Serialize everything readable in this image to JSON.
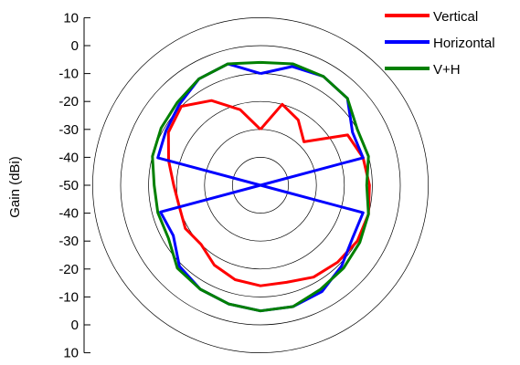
{
  "chart_data": {
    "type": "line",
    "subtype": "polar",
    "ylabel": "Gain (dBi)",
    "r_axis_ticks": [
      "10",
      "0",
      "-10",
      "-20",
      "-30",
      "-40",
      "-50",
      "-40",
      "-30",
      "-20",
      "-10",
      "0",
      "10"
    ],
    "r_range": [
      -50,
      10
    ],
    "rings_db": [
      -40,
      -30,
      -20,
      -10,
      0,
      10
    ],
    "legend_position": "top-right",
    "theta_deg_start": 0,
    "theta_deg_step": 15,
    "series": [
      {
        "name": "Vertical",
        "color": "#ff0000",
        "r_db": [
          -30,
          -20,
          -23,
          -28,
          -14,
          -12,
          -11,
          -10,
          -10,
          -11,
          -12,
          -14,
          -14,
          -15,
          -17,
          -20,
          -19,
          -20,
          -19,
          -16,
          -12,
          -10,
          -15,
          -22,
          -30
        ]
      },
      {
        "name": "Horizontal",
        "color": "#0000ff",
        "r_db": [
          -10,
          -6,
          -5,
          -6,
          -12,
          -12,
          -50,
          -12,
          -12,
          -9,
          -6,
          -5,
          -5,
          -6,
          -7,
          -9,
          -14,
          -13,
          -50,
          -12,
          -11,
          -9,
          -6,
          -5,
          -10
        ]
      },
      {
        "name": "V+H",
        "color": "#008000",
        "r_db": [
          -6,
          -5,
          -5,
          -6,
          -10,
          -10,
          -12,
          -10,
          -9,
          -8,
          -7,
          -5,
          -5,
          -6,
          -7,
          -8,
          -12,
          -12,
          -12,
          -10,
          -9,
          -8,
          -6,
          -5,
          -6
        ]
      }
    ]
  }
}
